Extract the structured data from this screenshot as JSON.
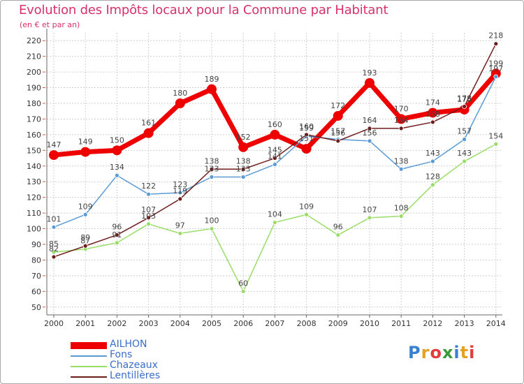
{
  "title": "Evolution des Impôts locaux pour la Commune par Habitant",
  "subtitle": "(en € et par an)",
  "logo": "Proxiti",
  "chart_data": {
    "type": "line",
    "title": "Evolution des Impôts locaux pour la Commune par Habitant",
    "subtitle": "(en € et par an)",
    "x": [
      "2000",
      "2001",
      "2002",
      "2003",
      "2004",
      "2005",
      "2006",
      "2007",
      "2008",
      "2009",
      "2010",
      "2011",
      "2012",
      "2013",
      "2014"
    ],
    "yticks": [
      50,
      60,
      70,
      80,
      90,
      100,
      110,
      120,
      130,
      140,
      150,
      160,
      170,
      180,
      190,
      200,
      210,
      220
    ],
    "ylim": [
      45,
      225
    ],
    "grid": true,
    "legend_position": "bottom-left",
    "series": [
      {
        "name": "AILHON",
        "color": "#ee0000",
        "values": [
          147,
          149,
          150,
          161,
          180,
          189,
          152,
          160,
          151,
          172,
          193,
          170,
          174,
          176,
          199
        ]
      },
      {
        "name": "Fons",
        "color": "#5b9bd5",
        "values": [
          101,
          109,
          134,
          122,
          123,
          133,
          133,
          141,
          159,
          157,
          156,
          138,
          143,
          157,
          197
        ]
      },
      {
        "name": "Chazeaux",
        "color": "#99dd66",
        "values": [
          85,
          87,
          91,
          103,
          97,
          100,
          60,
          104,
          109,
          96,
          107,
          108,
          128,
          143,
          154
        ]
      },
      {
        "name": "Lentillères",
        "color": "#6e1d1d",
        "values": [
          82,
          89,
          96,
          107,
          119,
          138,
          138,
          145,
          160,
          156,
          164,
          164,
          168,
          178,
          218
        ]
      }
    ]
  }
}
